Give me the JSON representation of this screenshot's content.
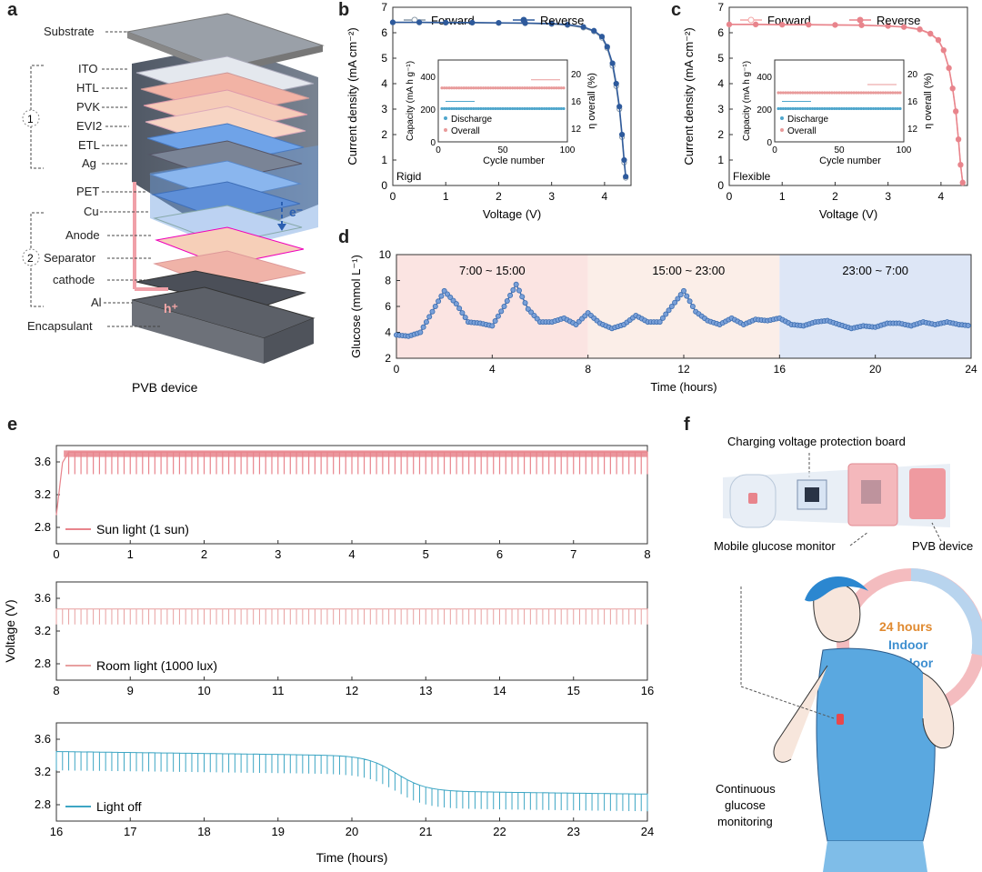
{
  "panel_labels": {
    "a": "a",
    "b": "b",
    "c": "c",
    "d": "d",
    "e": "e",
    "f": "f"
  },
  "colors": {
    "forward": "#8a9aa8",
    "reverse": "#2e5a9c",
    "rigid_forward": "#8a9aa8",
    "flex": "#e8848c",
    "discharge": "#4fa6cc",
    "overall": "#e89a9a",
    "glucose": "#3b6db0",
    "sun": "#e8848c",
    "room": "#e8a0a0",
    "off": "#3ea6c4"
  },
  "panel_a": {
    "layers": [
      "Substrate",
      "ITO",
      "HTL",
      "PVK",
      "EVI2",
      "ETL",
      "Ag",
      "PET",
      "Cu",
      "Anode",
      "Separator",
      "cathode",
      "Al",
      "Encapsulant"
    ],
    "group1": "1",
    "group2": "2",
    "electron": "e⁻",
    "hole": "h⁺",
    "caption": "PVB device"
  },
  "panel_f": {
    "board": "Charging voltage protection board",
    "monitor": "Mobile glucose monitor",
    "device": "PVB device",
    "ring": [
      "24 hours",
      "Indoor",
      "Outdoor"
    ],
    "cgm": [
      "Continuous",
      "glucose",
      "monitoring"
    ]
  },
  "chart_data": [
    {
      "id": "b",
      "type": "line",
      "subtitle": "Rigid",
      "xlabel": "Voltage (V)",
      "ylabel": "Current density (mA cm⁻²)",
      "xlim": [
        0,
        4.5
      ],
      "ylim": [
        0,
        7
      ],
      "xticks": [
        "0",
        "1",
        "2",
        "3",
        "4"
      ],
      "yticks": [
        "0",
        "1",
        "2",
        "3",
        "4",
        "5",
        "6",
        "7"
      ],
      "series": [
        {
          "name": "Forward",
          "x": [
            0,
            0.5,
            1,
            1.5,
            2,
            2.5,
            3,
            3.3,
            3.6,
            3.8,
            3.95,
            4.05,
            4.15,
            4.22,
            4.28,
            4.33,
            4.37,
            4.4
          ],
          "y": [
            6.4,
            6.4,
            6.39,
            6.39,
            6.38,
            6.37,
            6.34,
            6.3,
            6.2,
            6.05,
            5.8,
            5.4,
            4.7,
            3.9,
            3.0,
            1.9,
            0.9,
            0.3
          ]
        },
        {
          "name": "Reverse",
          "x": [
            0,
            0.5,
            1,
            1.5,
            2,
            2.5,
            3,
            3.3,
            3.6,
            3.8,
            3.95,
            4.05,
            4.15,
            4.22,
            4.28,
            4.33,
            4.37,
            4.4
          ],
          "y": [
            6.41,
            6.41,
            6.4,
            6.4,
            6.39,
            6.38,
            6.36,
            6.32,
            6.23,
            6.08,
            5.85,
            5.45,
            4.8,
            4.0,
            3.1,
            2.0,
            1.0,
            0.35
          ]
        }
      ],
      "inset": {
        "xlabel": "Cycle number",
        "ylabel": "Capacity (mA h g⁻¹)",
        "y2label": "η overall (%)",
        "xticks": [
          "0",
          "50",
          "100"
        ],
        "yticks": [
          "0",
          "200",
          "400"
        ],
        "y2ticks": [
          "12",
          "16",
          "20"
        ],
        "legend": [
          "Discharge",
          "Overall"
        ],
        "discharge_level": 203,
        "overall_level": 17.9
      }
    },
    {
      "id": "c",
      "type": "line",
      "subtitle": "Flexible",
      "xlabel": "Voltage (V)",
      "ylabel": "Current density (mA cm⁻²)",
      "xlim": [
        0,
        4.5
      ],
      "ylim": [
        0,
        7
      ],
      "xticks": [
        "0",
        "1",
        "2",
        "3",
        "4"
      ],
      "yticks": [
        "0",
        "1",
        "2",
        "3",
        "4",
        "5",
        "6",
        "7"
      ],
      "series": [
        {
          "name": "Forward",
          "x": [
            0,
            0.5,
            1,
            1.5,
            2,
            2.5,
            3,
            3.3,
            3.6,
            3.8,
            3.95,
            4.05,
            4.15,
            4.22,
            4.28,
            4.33,
            4.37,
            4.41
          ],
          "y": [
            6.32,
            6.32,
            6.31,
            6.31,
            6.3,
            6.29,
            6.26,
            6.22,
            6.12,
            5.95,
            5.7,
            5.3,
            4.6,
            3.8,
            2.9,
            1.8,
            0.8,
            0.1
          ]
        },
        {
          "name": "Reverse",
          "x": [
            0,
            0.5,
            1,
            1.5,
            2,
            2.5,
            3,
            3.3,
            3.6,
            3.8,
            3.95,
            4.05,
            4.15,
            4.22,
            4.28,
            4.33,
            4.37,
            4.41
          ],
          "y": [
            6.33,
            6.33,
            6.32,
            6.32,
            6.31,
            6.3,
            6.27,
            6.23,
            6.14,
            5.97,
            5.72,
            5.32,
            4.62,
            3.82,
            2.92,
            1.82,
            0.82,
            0.12
          ]
        }
      ],
      "inset": {
        "xlabel": "Cycle number",
        "ylabel": "Capacity (mA h g⁻¹)",
        "y2label": "η overall (%)",
        "xticks": [
          "0",
          "50",
          "100"
        ],
        "yticks": [
          "0",
          "200",
          "400"
        ],
        "y2ticks": [
          "12",
          "16",
          "20"
        ],
        "legend": [
          "Discharge",
          "Overall"
        ],
        "discharge_level": 203,
        "overall_level": 17.2
      }
    },
    {
      "id": "d",
      "type": "line",
      "xlabel": "Time (hours)",
      "ylabel": "Glucose (mmol L⁻¹)",
      "xlim": [
        0,
        24
      ],
      "ylim": [
        2,
        10
      ],
      "xticks": [
        "0",
        "4",
        "8",
        "12",
        "16",
        "20",
        "24"
      ],
      "yticks": [
        "2",
        "4",
        "6",
        "8",
        "10"
      ],
      "annotations": [
        "7:00 ~ 15:00",
        "15:00 ~ 23:00",
        "23:00 ~ 7:00"
      ],
      "series": [
        {
          "name": "Glucose",
          "x": [
            0,
            0.5,
            1,
            1.5,
            2,
            2.5,
            3,
            3.5,
            4,
            4.5,
            5,
            5.5,
            6,
            6.5,
            7,
            7.5,
            8,
            8.5,
            9,
            9.5,
            10,
            10.5,
            11,
            11.5,
            12,
            12.5,
            13,
            13.5,
            14,
            14.5,
            15,
            15.5,
            16,
            16.5,
            17,
            17.5,
            18,
            18.5,
            19,
            19.5,
            20,
            20.5,
            21,
            21.5,
            22,
            22.5,
            23,
            23.5,
            24
          ],
          "y": [
            3.8,
            3.7,
            4.0,
            5.6,
            7.2,
            6.2,
            4.8,
            4.7,
            4.5,
            6.0,
            7.7,
            5.8,
            4.8,
            4.8,
            5.1,
            4.6,
            5.5,
            4.7,
            4.3,
            4.6,
            5.3,
            4.8,
            4.8,
            6.0,
            7.2,
            5.6,
            4.9,
            4.6,
            5.1,
            4.6,
            5.0,
            4.9,
            5.1,
            4.6,
            4.5,
            4.8,
            4.9,
            4.6,
            4.3,
            4.5,
            4.4,
            4.7,
            4.7,
            4.5,
            4.8,
            4.6,
            4.8,
            4.6,
            4.5
          ]
        }
      ]
    },
    {
      "id": "e",
      "type": "line",
      "xlabel": "Time (hours)",
      "ylabel": "Voltage (V)",
      "ylim": [
        2.6,
        3.8
      ],
      "yticks": [
        "2.8",
        "3.2",
        "3.6"
      ],
      "subplots": [
        {
          "name": "Sun light (1 sun)",
          "xlim": [
            0,
            8
          ],
          "xticks": [
            "0",
            "1",
            "2",
            "3",
            "4",
            "5",
            "6",
            "7",
            "8"
          ],
          "top": 3.72,
          "bottom": 3.45,
          "start": 2.95
        },
        {
          "name": "Room light (1000 lux)",
          "xlim": [
            8,
            16
          ],
          "xticks": [
            "8",
            "9",
            "10",
            "11",
            "12",
            "13",
            "14",
            "15",
            "16"
          ],
          "top": 3.47,
          "bottom": 3.28
        },
        {
          "name": "Light off",
          "xlim": [
            16,
            24
          ],
          "xticks": [
            "16",
            "17",
            "18",
            "19",
            "20",
            "21",
            "22",
            "23",
            "24"
          ],
          "top_start": 3.45,
          "top_end": 2.93,
          "bottom_start": 3.22,
          "bottom_end": 2.72
        }
      ]
    }
  ]
}
